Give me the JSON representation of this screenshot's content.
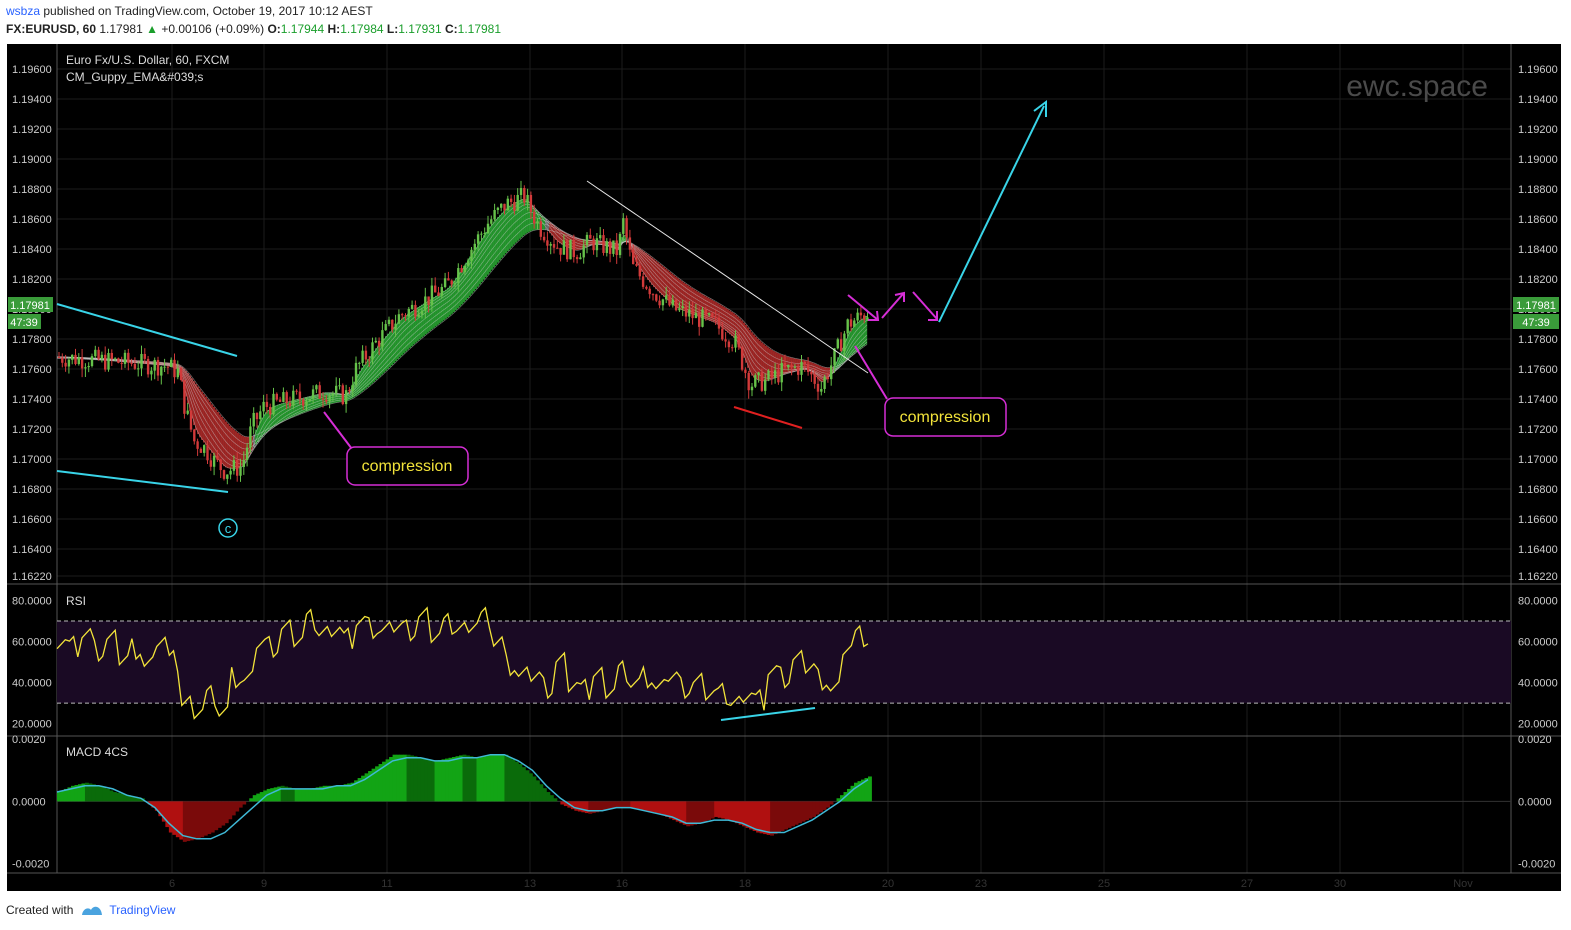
{
  "header": {
    "user": "wsbza",
    "published_text": " published on TradingView.com, October 19, 2017 10:12 AEST",
    "symbol": "FX:EURUSD, 60",
    "last": "1.17981",
    "change_arrow": "▲",
    "change": "+0.00106 (+0.09%)",
    "o_label": "O:",
    "o": "1.17944",
    "h_label": "H:",
    "h": "1.17984",
    "l_label": "L:",
    "l": "1.17931",
    "c_label": "C:",
    "c": "1.17981"
  },
  "footer": {
    "created_with": "Created with",
    "brand": "TradingView"
  },
  "colors": {
    "background": "#000000",
    "bull_candle": "#66c24a",
    "bear_candle": "#d23a3a",
    "ema_up": "#2fbf3a",
    "ema_down": "#c8302f",
    "ema_neutral": "#8a8a8a",
    "rsi_line": "#f2e33a",
    "rsi_band": "#1a0a24",
    "macd_line": "#3fb9d6",
    "macd_pos": "#12a415",
    "macd_neg": "#b01010",
    "annotation_cyan": "#39d4e8",
    "annotation_magenta": "#d62ed6",
    "annotation_text": "#f2e33a",
    "price_tag": "#3a9b3a"
  },
  "chart_data": [
    {
      "type": "candlestick",
      "title": "Euro Fx/U.S. Dollar, 60, FXCM",
      "indicator": "CM_Guppy_EMA&#039;s",
      "watermark": "ewc.space",
      "ylim": [
        1.1622,
        1.1966
      ],
      "y_ticks": [
        "1.19600",
        "1.19400",
        "1.19200",
        "1.19000",
        "1.18800",
        "1.18600",
        "1.18400",
        "1.18200",
        "1.18000",
        "1.17800",
        "1.17600",
        "1.17400",
        "1.17200",
        "1.17000",
        "1.16800",
        "1.16600",
        "1.16400",
        "1.16220"
      ],
      "last_price_tag": "1.17981",
      "countdown_tag": "47:39",
      "x_ticks": [
        "6",
        "9",
        "11",
        "13",
        "16",
        "18",
        "20",
        "23",
        "25",
        "27",
        "30",
        "Nov"
      ],
      "price_path": [
        {
          "date": "Oct 5 00:00",
          "price": 1.1768
        },
        {
          "date": "Oct 5 12:00",
          "price": 1.1765
        },
        {
          "date": "Oct 5 23:00",
          "price": 1.1762
        },
        {
          "date": "Oct 6 04:00",
          "price": 1.1758
        },
        {
          "date": "Oct 6 08:00",
          "price": 1.1735
        },
        {
          "date": "Oct 6 14:00",
          "price": 1.1712
        },
        {
          "date": "Oct 6 20:00",
          "price": 1.1708
        },
        {
          "date": "Oct 7 04:00",
          "price": 1.1698
        },
        {
          "date": "Oct 7 12:00",
          "price": 1.1692
        },
        {
          "date": "Oct 8 02:00",
          "price": 1.1695
        },
        {
          "date": "Oct 8 12:00",
          "price": 1.1722
        },
        {
          "date": "Oct 9 00:00",
          "price": 1.1735
        },
        {
          "date": "Oct 9 12:00",
          "price": 1.174
        },
        {
          "date": "Oct 10 00:00",
          "price": 1.1745
        },
        {
          "date": "Oct 10 08:00",
          "price": 1.1742
        },
        {
          "date": "Oct 10 12:00",
          "price": 1.176
        },
        {
          "date": "Oct 10 20:00",
          "price": 1.1778
        },
        {
          "date": "Oct 11 04:00",
          "price": 1.1795
        },
        {
          "date": "Oct 11 12:00",
          "price": 1.1805
        },
        {
          "date": "Oct 11 20:00",
          "price": 1.1815
        },
        {
          "date": "Oct 12 04:00",
          "price": 1.184
        },
        {
          "date": "Oct 12 10:00",
          "price": 1.1858
        },
        {
          "date": "Oct 12 16:00",
          "price": 1.187
        },
        {
          "date": "Oct 12 22:00",
          "price": 1.1875
        },
        {
          "date": "Oct 13 04:00",
          "price": 1.1855
        },
        {
          "date": "Oct 13 12:00",
          "price": 1.1842
        },
        {
          "date": "Oct 13 20:00",
          "price": 1.1838
        },
        {
          "date": "Oct 15 04:00",
          "price": 1.1845
        },
        {
          "date": "Oct 15 22:00",
          "price": 1.1838
        },
        {
          "date": "Oct 16 00:00",
          "price": 1.1862
        },
        {
          "date": "Oct 16 04:00",
          "price": 1.1828
        },
        {
          "date": "Oct 16 12:00",
          "price": 1.1812
        },
        {
          "date": "Oct 16 20:00",
          "price": 1.18
        },
        {
          "date": "Oct 17 04:00",
          "price": 1.1795
        },
        {
          "date": "Oct 17 12:00",
          "price": 1.179
        },
        {
          "date": "Oct 17 20:00",
          "price": 1.1778
        },
        {
          "date": "Oct 18 02:00",
          "price": 1.175
        },
        {
          "date": "Oct 18 08:00",
          "price": 1.1752
        },
        {
          "date": "Oct 18 14:00",
          "price": 1.1758
        },
        {
          "date": "Oct 18 22:00",
          "price": 1.1762
        },
        {
          "date": "Oct 19 04:00",
          "price": 1.1748
        },
        {
          "date": "Oct 19 08:00",
          "price": 1.1768
        },
        {
          "date": "Oct 19 12:00",
          "price": 1.179
        },
        {
          "date": "Oct 19 18:00",
          "price": 1.1798
        }
      ],
      "annotations": [
        {
          "label": "compression"
        },
        {
          "label": "compression"
        },
        {
          "label": "c"
        }
      ]
    },
    {
      "type": "line",
      "title": "RSI",
      "ylim": [
        14,
        88
      ],
      "y_ticks": [
        "80.0000",
        "60.0000",
        "40.0000",
        "20.0000"
      ],
      "bands": [
        30,
        70
      ],
      "values": [
        62,
        58,
        64,
        55,
        60,
        52,
        57,
        48,
        62,
        50,
        30,
        28,
        34,
        26,
        42,
        40,
        60,
        58,
        66,
        62,
        70,
        64,
        68,
        62,
        70,
        66,
        64,
        68,
        66,
        72,
        64,
        68,
        66,
        70,
        72,
        60,
        48,
        42,
        44,
        38,
        50,
        40,
        36,
        44,
        38,
        46,
        40,
        42,
        36,
        44,
        38,
        40,
        36,
        34,
        30,
        36,
        32,
        46,
        42,
        50,
        48,
        42,
        36,
        58,
        62,
        60
      ]
    },
    {
      "type": "bar",
      "title": "MACD 4CS",
      "ylim": [
        -0.0023,
        0.0021
      ],
      "y_ticks": [
        "0.0020",
        "0.0000",
        "-0.0020"
      ],
      "hist": [
        0.0003,
        0.0005,
        0.0006,
        0.0005,
        0.0003,
        0.0002,
        0.0001,
        -0.0003,
        -0.001,
        -0.0013,
        -0.0012,
        -0.001,
        -0.0007,
        -0.0002,
        0.0002,
        0.0004,
        0.0005,
        0.0004,
        0.0004,
        0.0005,
        0.0005,
        0.0006,
        0.0009,
        0.0012,
        0.0015,
        0.0015,
        0.0014,
        0.0013,
        0.0014,
        0.0015,
        0.0014,
        0.0015,
        0.0015,
        0.0012,
        0.0008,
        0.0003,
        -0.0001,
        -0.0003,
        -0.0004,
        -0.0003,
        -0.0002,
        -0.0002,
        -0.0003,
        -0.0004,
        -0.0006,
        -0.0008,
        -0.0007,
        -0.0005,
        -0.0006,
        -0.0008,
        -0.001,
        -0.0011,
        -0.0009,
        -0.0007,
        -0.0005,
        -0.0002,
        0.0002,
        0.0006,
        0.0008
      ],
      "signal": [
        0.0003,
        0.0004,
        0.0005,
        0.0005,
        0.0004,
        0.0002,
        0.0001,
        -0.0002,
        -0.0007,
        -0.0011,
        -0.0012,
        -0.0012,
        -0.001,
        -0.0006,
        -0.0002,
        0.0002,
        0.0004,
        0.0004,
        0.0004,
        0.0004,
        0.0005,
        0.0005,
        0.0007,
        0.001,
        0.0013,
        0.0014,
        0.0014,
        0.0013,
        0.0013,
        0.0014,
        0.0014,
        0.0015,
        0.0015,
        0.0013,
        0.001,
        0.0005,
        0.0001,
        -0.0002,
        -0.0003,
        -0.0003,
        -0.0002,
        -0.0002,
        -0.0003,
        -0.0004,
        -0.0005,
        -0.0007,
        -0.0007,
        -0.0006,
        -0.0006,
        -0.0007,
        -0.0009,
        -0.001,
        -0.001,
        -0.0008,
        -0.0006,
        -0.0003,
        0.0,
        0.0004,
        0.0007
      ]
    }
  ]
}
